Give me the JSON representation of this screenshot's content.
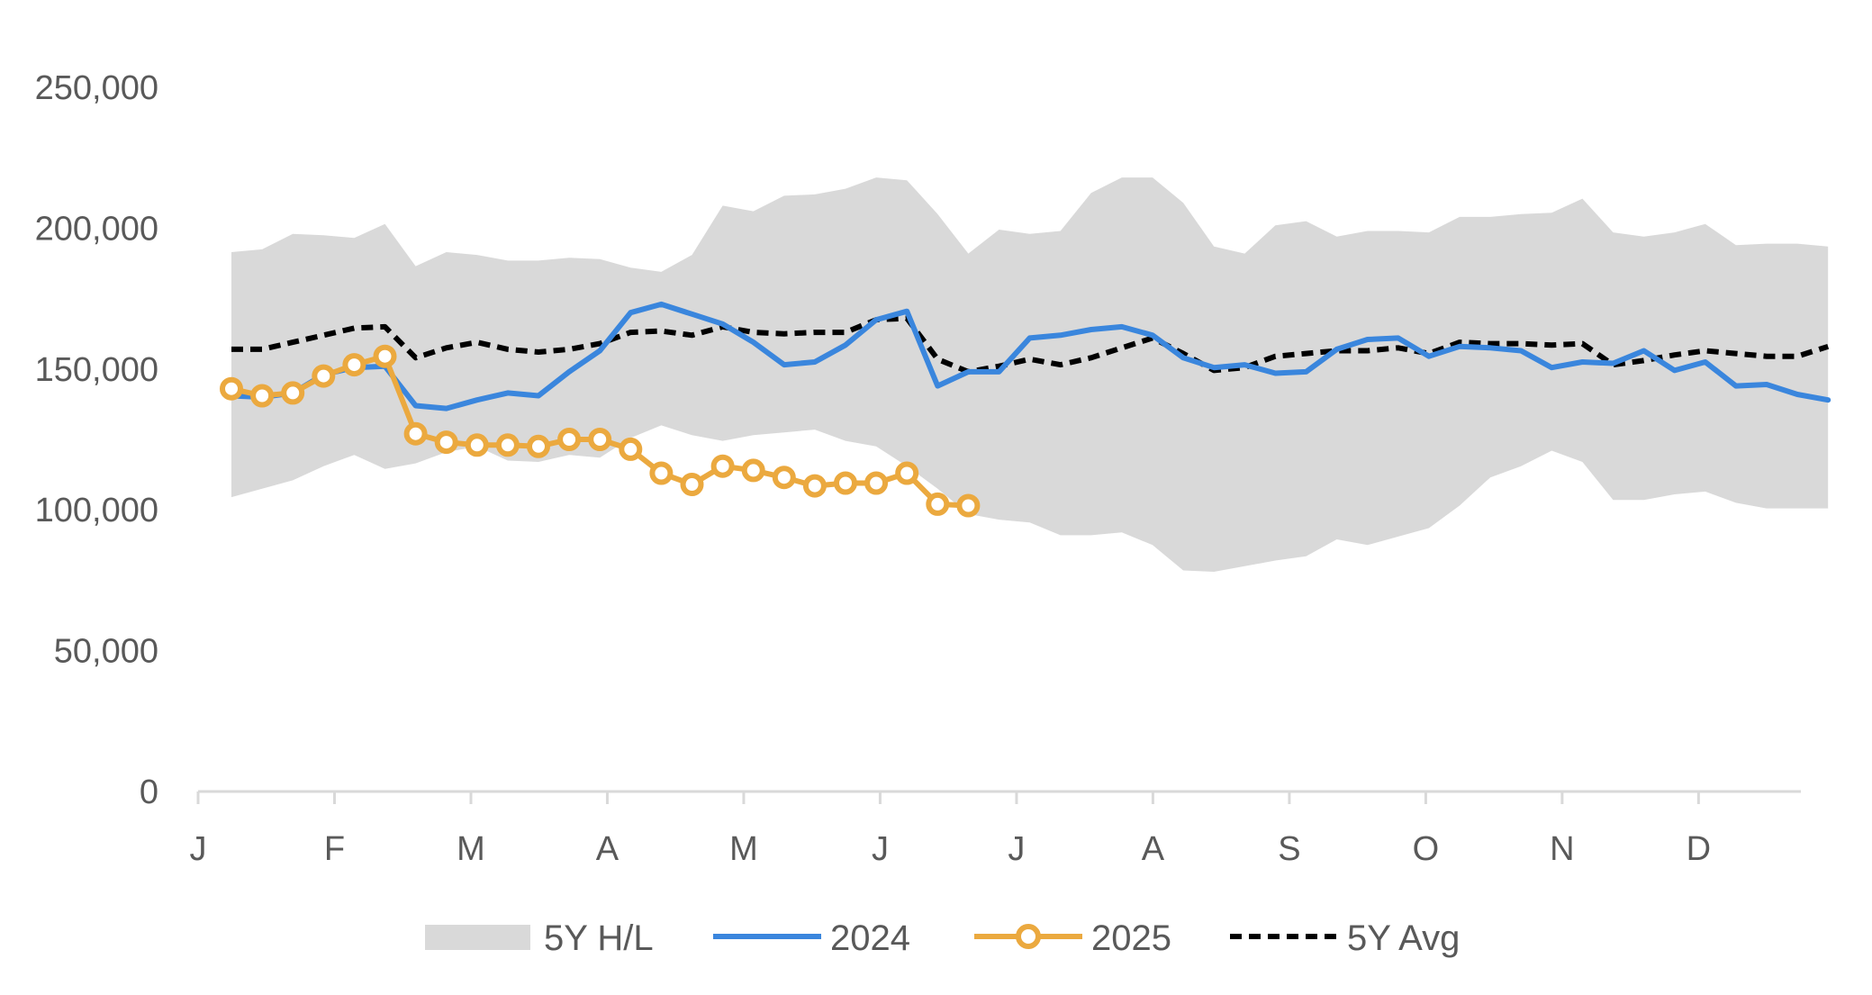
{
  "chart_data": {
    "type": "line",
    "title": "",
    "xlabel": "",
    "ylabel": "",
    "ylim": [
      0,
      250000
    ],
    "y_ticks": [
      0,
      50000,
      100000,
      150000,
      200000,
      250000
    ],
    "y_tick_labels": [
      "0",
      "50,000",
      "100,000",
      "150,000",
      "200,000",
      "250,000"
    ],
    "x_tick_labels": [
      "J",
      "F",
      "M",
      "A",
      "M",
      "J",
      "J",
      "A",
      "S",
      "O",
      "N",
      "D"
    ],
    "x_unit": "week of year (1-53)",
    "grid": false,
    "legend_position": "bottom",
    "colors": {
      "band": "#d9d9d9",
      "s2024": "#3a86dd",
      "s2025": "#eba93f",
      "avg": "#000000",
      "axis": "#d9d9d9",
      "text": "#595959"
    },
    "band": {
      "name": "5Y H/L",
      "x": [
        1,
        2,
        3,
        4,
        5,
        6,
        7,
        8,
        9,
        10,
        11,
        12,
        13,
        14,
        15,
        16,
        17,
        18,
        19,
        20,
        21,
        22,
        23,
        24,
        25,
        26,
        27,
        28,
        29,
        30,
        31,
        32,
        33,
        34,
        35,
        36,
        37,
        38,
        39,
        40,
        41,
        42,
        43,
        44,
        45,
        46,
        47,
        48,
        49,
        50,
        51,
        52,
        53
      ],
      "high": [
        191500,
        192500,
        198000,
        197500,
        196500,
        201500,
        186500,
        191500,
        190500,
        188500,
        188500,
        189500,
        189000,
        186000,
        184500,
        190500,
        208000,
        206000,
        211500,
        212000,
        214000,
        218000,
        217000,
        205000,
        191000,
        199500,
        198000,
        199000,
        212500,
        218000,
        218000,
        209000,
        193500,
        191000,
        201000,
        202500,
        197000,
        199000,
        199000,
        198500,
        204000,
        204000,
        205000,
        205500,
        210500,
        198500,
        197000,
        198500,
        201500,
        194000,
        194500,
        194500,
        193500
      ],
      "low": [
        104500,
        107500,
        110500,
        115500,
        119500,
        114500,
        116500,
        120500,
        122500,
        117500,
        117000,
        119500,
        118500,
        125500,
        130000,
        126500,
        124500,
        126500,
        127500,
        128500,
        124500,
        122500,
        115500,
        107500,
        98500,
        96500,
        95500,
        91000,
        91000,
        92000,
        87500,
        78500,
        78000,
        80000,
        82000,
        83500,
        89500,
        87500,
        90500,
        93500,
        101500,
        111500,
        115500,
        121000,
        117000,
        103500,
        103500,
        105500,
        106500,
        102500,
        100500,
        100500,
        100500
      ]
    },
    "series": [
      {
        "name": "2024",
        "x": [
          1,
          2,
          3,
          4,
          5,
          6,
          7,
          8,
          9,
          10,
          11,
          12,
          13,
          14,
          15,
          16,
          17,
          18,
          19,
          20,
          21,
          22,
          23,
          24,
          25,
          26,
          27,
          28,
          29,
          30,
          31,
          32,
          33,
          34,
          35,
          36,
          37,
          38,
          39,
          40,
          41,
          42,
          43,
          44,
          45,
          46,
          47,
          48,
          49,
          50,
          51,
          52,
          53
        ],
        "values": [
          140500,
          140000,
          141500,
          148000,
          150500,
          151000,
          137000,
          136000,
          139000,
          141500,
          140500,
          149000,
          156500,
          170000,
          173000,
          169500,
          166000,
          159500,
          151500,
          152500,
          158500,
          167500,
          170500,
          144000,
          149000,
          149000,
          161000,
          162000,
          164000,
          165000,
          162000,
          154000,
          150500,
          151500,
          148500,
          149000,
          157000,
          160500,
          161000,
          154500,
          158000,
          157500,
          156500,
          150500,
          152500,
          152000,
          156500,
          149500,
          152500,
          144000,
          144500,
          141000,
          139000
        ]
      },
      {
        "name": "2025",
        "x": [
          1,
          2,
          3,
          4,
          5,
          6,
          7,
          8,
          9,
          10,
          11,
          12,
          13,
          14,
          15,
          16,
          17,
          18,
          19,
          20,
          21,
          22,
          23,
          24,
          25
        ],
        "values": [
          143000,
          140500,
          141500,
          147500,
          151500,
          154500,
          127000,
          124000,
          123000,
          123000,
          122500,
          125000,
          125000,
          121500,
          113000,
          109000,
          115500,
          114000,
          111500,
          108500,
          109500,
          109500,
          113000,
          102000,
          101500
        ]
      },
      {
        "name": "5Y Avg",
        "x": [
          1,
          2,
          3,
          4,
          5,
          6,
          7,
          8,
          9,
          10,
          11,
          12,
          13,
          14,
          15,
          16,
          17,
          18,
          19,
          20,
          21,
          22,
          23,
          24,
          25,
          26,
          27,
          28,
          29,
          30,
          31,
          32,
          33,
          34,
          35,
          36,
          37,
          38,
          39,
          40,
          41,
          42,
          43,
          44,
          45,
          46,
          47,
          48,
          49,
          50,
          51,
          52,
          53
        ],
        "values": [
          157000,
          157000,
          159500,
          162000,
          164500,
          165000,
          154000,
          157500,
          159500,
          157000,
          156000,
          157000,
          159000,
          163000,
          163500,
          162000,
          165000,
          163000,
          162500,
          163000,
          163000,
          167500,
          168000,
          153500,
          149000,
          151000,
          153500,
          151500,
          154000,
          157500,
          161000,
          155500,
          149500,
          150500,
          154500,
          155500,
          156500,
          156500,
          157500,
          155500,
          159500,
          159000,
          159000,
          158500,
          159000,
          151500,
          153000,
          155000,
          156500,
          155500,
          154500,
          154500,
          158000
        ]
      }
    ]
  },
  "legend": {
    "items": [
      {
        "key": "band",
        "label": "5Y H/L"
      },
      {
        "key": "s2024",
        "label": "2024"
      },
      {
        "key": "s2025",
        "label": "2025"
      },
      {
        "key": "avg",
        "label": "5Y Avg"
      }
    ]
  }
}
